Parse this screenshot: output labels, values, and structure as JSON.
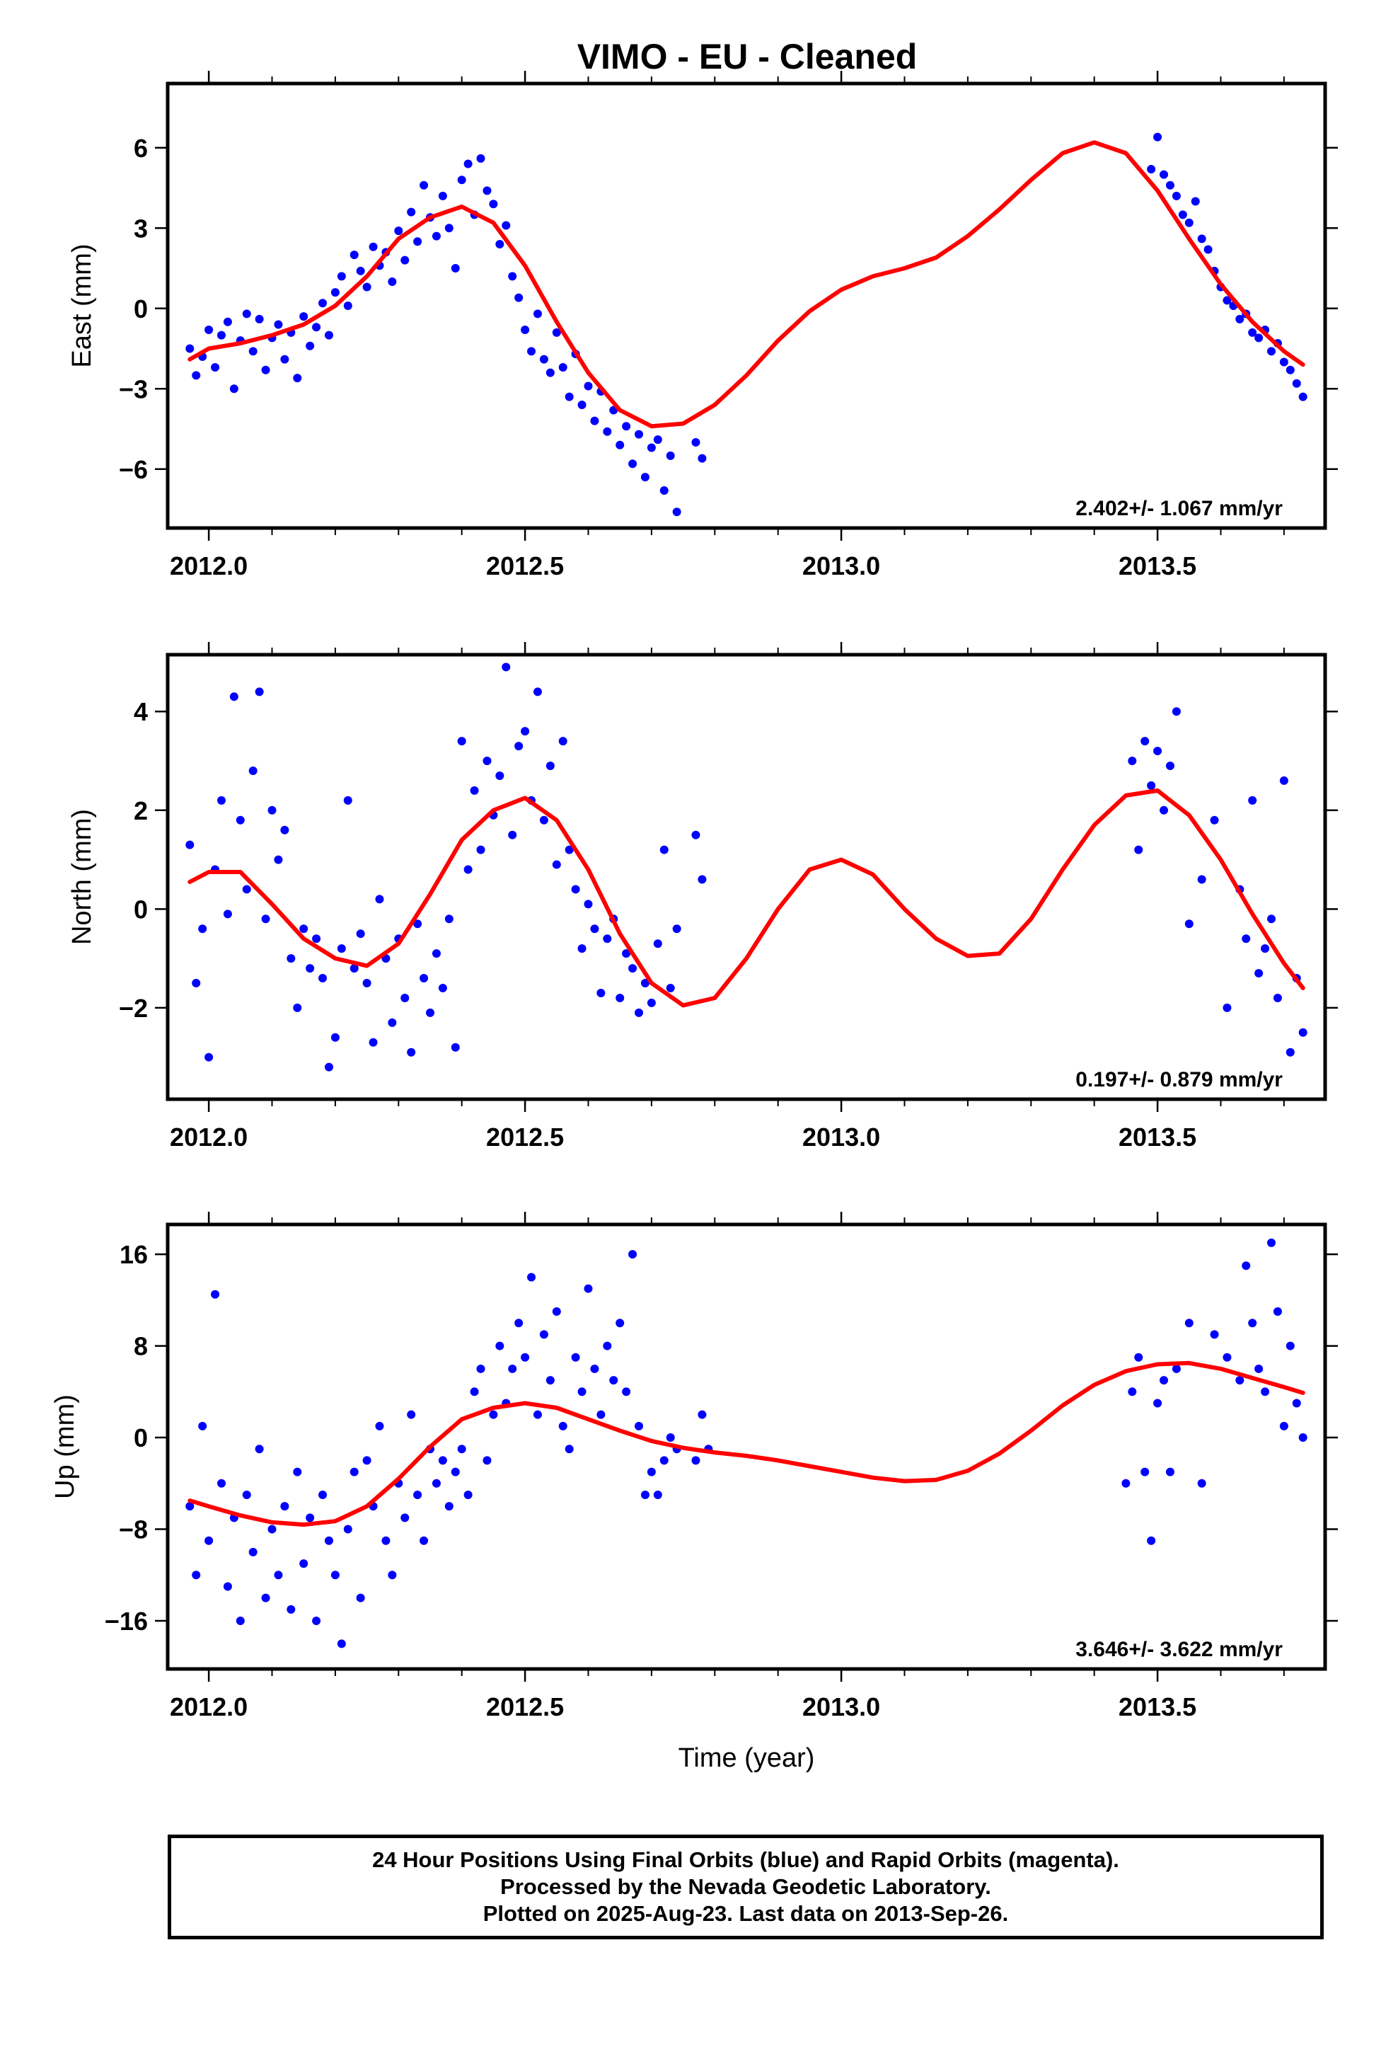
{
  "title": "VIMO  - EU - Cleaned",
  "xlabel": "Time (year)",
  "x_tick_labels": [
    "2012.0",
    "2012.5",
    "2013.0",
    "2013.5"
  ],
  "colors": {
    "data_points": "#0000ff",
    "model_curve": "#ff0000",
    "frame": "#000000"
  },
  "footer": {
    "line1": "24 Hour Positions Using Final Orbits (blue) and Rapid Orbits (magenta).",
    "line2": "Processed by the Nevada Geodetic Laboratory.",
    "line3": "Plotted on 2025-Aug-23. Last data on 2013-Sep-26."
  },
  "chart_data": [
    {
      "type": "scatter",
      "title": "VIMO  - EU - Cleaned",
      "xlabel": "",
      "ylabel": "East (mm)",
      "xlim": [
        2011.935,
        2013.765
      ],
      "ylim": [
        -8.2,
        8.4
      ],
      "xticks": [
        2012.0,
        2012.5,
        2013.0,
        2013.5
      ],
      "yticks": [
        -6,
        -3,
        0,
        3,
        6
      ],
      "ytick_labels": [
        "−6",
        "−3",
        "0",
        "3",
        "6"
      ],
      "rate": "2.402+/- 1.067 mm/yr",
      "grid": false,
      "series": [
        {
          "kind": "points",
          "x": [
            2011.97,
            2011.98,
            2011.99,
            2012.0,
            2012.01,
            2012.02,
            2012.03,
            2012.04,
            2012.05,
            2012.06,
            2012.07,
            2012.08,
            2012.09,
            2012.1,
            2012.11,
            2012.12,
            2012.13,
            2012.14,
            2012.15,
            2012.16,
            2012.17,
            2012.18,
            2012.19,
            2012.2,
            2012.21,
            2012.22,
            2012.23,
            2012.24,
            2012.25,
            2012.26,
            2012.27,
            2012.28,
            2012.29,
            2012.3,
            2012.31,
            2012.32,
            2012.33,
            2012.34,
            2012.35,
            2012.36,
            2012.37,
            2012.38,
            2012.39,
            2012.4,
            2012.41,
            2012.42,
            2012.43,
            2012.44,
            2012.45,
            2012.46,
            2012.47,
            2012.48,
            2012.49,
            2012.5,
            2012.51,
            2012.52,
            2012.53,
            2012.54,
            2012.55,
            2012.56,
            2012.57,
            2012.58,
            2012.59,
            2012.6,
            2012.61,
            2012.62,
            2012.63,
            2012.64,
            2012.65,
            2012.66,
            2012.67,
            2012.68,
            2012.69,
            2012.7,
            2012.71,
            2012.72,
            2012.73,
            2012.74,
            2012.77,
            2012.78,
            2013.49,
            2013.5,
            2013.51,
            2013.52,
            2013.53,
            2013.54,
            2013.55,
            2013.56,
            2013.57,
            2013.58,
            2013.59,
            2013.6,
            2013.61,
            2013.62,
            2013.63,
            2013.64,
            2013.65,
            2013.66,
            2013.67,
            2013.68,
            2013.69,
            2013.7,
            2013.71,
            2013.72,
            2013.73
          ],
          "y": [
            -1.5,
            -2.5,
            -1.8,
            -0.8,
            -2.2,
            -1.0,
            -0.5,
            -3.0,
            -1.2,
            -0.2,
            -1.6,
            -0.4,
            -2.3,
            -1.1,
            -0.6,
            -1.9,
            -0.9,
            -2.6,
            -0.3,
            -1.4,
            -0.7,
            0.2,
            -1.0,
            0.6,
            1.2,
            0.1,
            2.0,
            1.4,
            0.8,
            2.3,
            1.6,
            2.1,
            1.0,
            2.9,
            1.8,
            3.6,
            2.5,
            4.6,
            3.4,
            2.7,
            4.2,
            3.0,
            1.5,
            4.8,
            5.4,
            3.5,
            5.6,
            4.4,
            3.9,
            2.4,
            3.1,
            1.2,
            0.4,
            -0.8,
            -1.6,
            -0.2,
            -1.9,
            -2.4,
            -0.9,
            -2.2,
            -3.3,
            -1.7,
            -3.6,
            -2.9,
            -4.2,
            -3.1,
            -4.6,
            -3.8,
            -5.1,
            -4.4,
            -5.8,
            -4.7,
            -6.3,
            -5.2,
            -4.9,
            -6.8,
            -5.5,
            -7.6,
            -5.0,
            -5.6,
            5.2,
            6.4,
            5.0,
            4.6,
            4.2,
            3.5,
            3.2,
            4.0,
            2.6,
            2.2,
            1.4,
            0.8,
            0.3,
            0.1,
            -0.4,
            -0.2,
            -0.9,
            -1.1,
            -0.8,
            -1.6,
            -1.3,
            -2.0,
            -2.3,
            -2.8,
            -3.3
          ]
        },
        {
          "kind": "model",
          "x": [
            2011.97,
            2012.0,
            2012.05,
            2012.1,
            2012.15,
            2012.2,
            2012.25,
            2012.3,
            2012.35,
            2012.4,
            2012.45,
            2012.5,
            2012.55,
            2012.6,
            2012.65,
            2012.7,
            2012.75,
            2012.8,
            2012.85,
            2012.9,
            2012.95,
            2013.0,
            2013.05,
            2013.1,
            2013.15,
            2013.2,
            2013.25,
            2013.3,
            2013.35,
            2013.4,
            2013.45,
            2013.5,
            2013.55,
            2013.6,
            2013.65,
            2013.7,
            2013.73
          ],
          "y": [
            -1.9,
            -1.5,
            -1.3,
            -1.0,
            -0.6,
            0.1,
            1.2,
            2.6,
            3.4,
            3.8,
            3.2,
            1.6,
            -0.5,
            -2.4,
            -3.8,
            -4.4,
            -4.3,
            -3.6,
            -2.5,
            -1.2,
            -0.1,
            0.7,
            1.2,
            1.5,
            1.9,
            2.7,
            3.7,
            4.8,
            5.8,
            6.2,
            5.8,
            4.4,
            2.6,
            0.9,
            -0.5,
            -1.6,
            -2.1
          ]
        }
      ]
    },
    {
      "type": "scatter",
      "xlabel": "",
      "ylabel": "North (mm)",
      "xlim": [
        2011.935,
        2013.765
      ],
      "ylim": [
        -3.85,
        5.15
      ],
      "xticks": [
        2012.0,
        2012.5,
        2013.0,
        2013.5
      ],
      "yticks": [
        -2,
        0,
        2,
        4
      ],
      "ytick_labels": [
        "−2",
        "0",
        "2",
        "4"
      ],
      "rate": "0.197+/- 0.879 mm/yr",
      "grid": false,
      "series": [
        {
          "kind": "points",
          "x": [
            2011.97,
            2011.98,
            2011.99,
            2012.0,
            2012.01,
            2012.02,
            2012.03,
            2012.04,
            2012.05,
            2012.06,
            2012.07,
            2012.08,
            2012.09,
            2012.1,
            2012.11,
            2012.12,
            2012.13,
            2012.14,
            2012.15,
            2012.16,
            2012.17,
            2012.18,
            2012.19,
            2012.2,
            2012.21,
            2012.22,
            2012.23,
            2012.24,
            2012.25,
            2012.26,
            2012.27,
            2012.28,
            2012.29,
            2012.3,
            2012.31,
            2012.32,
            2012.33,
            2012.34,
            2012.35,
            2012.36,
            2012.37,
            2012.38,
            2012.39,
            2012.4,
            2012.41,
            2012.42,
            2012.43,
            2012.44,
            2012.45,
            2012.46,
            2012.47,
            2012.48,
            2012.49,
            2012.5,
            2012.51,
            2012.52,
            2012.53,
            2012.54,
            2012.55,
            2012.56,
            2012.57,
            2012.58,
            2012.59,
            2012.6,
            2012.61,
            2012.62,
            2012.63,
            2012.64,
            2012.65,
            2012.66,
            2012.67,
            2012.68,
            2012.69,
            2012.7,
            2012.71,
            2012.72,
            2012.73,
            2012.74,
            2012.77,
            2012.78,
            2013.46,
            2013.47,
            2013.48,
            2013.49,
            2013.5,
            2013.51,
            2013.52,
            2013.53,
            2013.55,
            2013.57,
            2013.59,
            2013.61,
            2013.63,
            2013.64,
            2013.65,
            2013.66,
            2013.67,
            2013.68,
            2013.69,
            2013.7,
            2013.71,
            2013.72,
            2013.73
          ],
          "y": [
            1.3,
            -1.5,
            -0.4,
            -3.0,
            0.8,
            2.2,
            -0.1,
            4.3,
            1.8,
            0.4,
            2.8,
            4.4,
            -0.2,
            2.0,
            1.0,
            1.6,
            -1.0,
            -2.0,
            -0.4,
            -1.2,
            -0.6,
            -1.4,
            -3.2,
            -2.6,
            -0.8,
            2.2,
            -1.2,
            -0.5,
            -1.5,
            -2.7,
            0.2,
            -1.0,
            -2.3,
            -0.6,
            -1.8,
            -2.9,
            -0.3,
            -1.4,
            -2.1,
            -0.9,
            -1.6,
            -0.2,
            -2.8,
            3.4,
            0.8,
            2.4,
            1.2,
            3.0,
            1.9,
            2.7,
            4.9,
            1.5,
            3.3,
            3.6,
            2.2,
            4.4,
            1.8,
            2.9,
            0.9,
            3.4,
            1.2,
            0.4,
            -0.8,
            0.1,
            -0.4,
            -1.7,
            -0.6,
            -0.2,
            -1.8,
            -0.9,
            -1.2,
            -2.1,
            -1.5,
            -1.9,
            -0.7,
            1.2,
            -1.6,
            -0.4,
            1.5,
            0.6,
            3.0,
            1.2,
            3.4,
            2.5,
            3.2,
            2.0,
            2.9,
            4.0,
            -0.3,
            0.6,
            1.8,
            -2.0,
            0.4,
            -0.6,
            2.2,
            -1.3,
            -0.8,
            -0.2,
            -1.8,
            2.6,
            -2.9,
            -1.4,
            -2.5
          ]
        },
        {
          "kind": "model",
          "x": [
            2011.97,
            2012.0,
            2012.05,
            2012.1,
            2012.15,
            2012.2,
            2012.25,
            2012.3,
            2012.35,
            2012.4,
            2012.45,
            2012.5,
            2012.55,
            2012.6,
            2012.65,
            2012.7,
            2012.75,
            2012.8,
            2012.85,
            2012.9,
            2012.95,
            2013.0,
            2013.05,
            2013.1,
            2013.15,
            2013.2,
            2013.25,
            2013.3,
            2013.35,
            2013.4,
            2013.45,
            2013.5,
            2013.55,
            2013.6,
            2013.65,
            2013.7,
            2013.73
          ],
          "y": [
            0.55,
            0.75,
            0.75,
            0.1,
            -0.6,
            -1.0,
            -1.15,
            -0.7,
            0.3,
            1.4,
            2.0,
            2.25,
            1.8,
            0.8,
            -0.5,
            -1.5,
            -1.95,
            -1.8,
            -1.0,
            0.0,
            0.8,
            1.0,
            0.7,
            0.0,
            -0.6,
            -0.95,
            -0.9,
            -0.2,
            0.8,
            1.7,
            2.3,
            2.4,
            1.9,
            1.0,
            -0.1,
            -1.1,
            -1.6
          ]
        }
      ]
    },
    {
      "type": "scatter",
      "xlabel": "Time (year)",
      "ylabel": "Up (mm)",
      "xlim": [
        2011.935,
        2013.765
      ],
      "ylim": [
        -20.2,
        18.6
      ],
      "xticks": [
        2012.0,
        2012.5,
        2013.0,
        2013.5
      ],
      "yticks": [
        -16,
        -8,
        0,
        8,
        16
      ],
      "ytick_labels": [
        "−16",
        "−8",
        "0",
        "8",
        "16"
      ],
      "rate": "3.646+/- 3.622 mm/yr",
      "grid": false,
      "series": [
        {
          "kind": "points",
          "x": [
            2011.97,
            2011.98,
            2011.99,
            2012.0,
            2012.01,
            2012.02,
            2012.03,
            2012.04,
            2012.05,
            2012.06,
            2012.07,
            2012.08,
            2012.09,
            2012.1,
            2012.11,
            2012.12,
            2012.13,
            2012.14,
            2012.15,
            2012.16,
            2012.17,
            2012.18,
            2012.19,
            2012.2,
            2012.21,
            2012.22,
            2012.23,
            2012.24,
            2012.25,
            2012.26,
            2012.27,
            2012.28,
            2012.29,
            2012.3,
            2012.31,
            2012.32,
            2012.33,
            2012.34,
            2012.35,
            2012.36,
            2012.37,
            2012.38,
            2012.39,
            2012.4,
            2012.41,
            2012.42,
            2012.43,
            2012.44,
            2012.45,
            2012.46,
            2012.47,
            2012.48,
            2012.49,
            2012.5,
            2012.51,
            2012.52,
            2012.53,
            2012.54,
            2012.55,
            2012.56,
            2012.57,
            2012.58,
            2012.59,
            2012.6,
            2012.61,
            2012.62,
            2012.63,
            2012.64,
            2012.65,
            2012.66,
            2012.67,
            2012.68,
            2012.69,
            2012.7,
            2012.71,
            2012.72,
            2012.73,
            2012.74,
            2012.77,
            2012.78,
            2012.79,
            2013.45,
            2013.46,
            2013.47,
            2013.48,
            2013.49,
            2013.5,
            2013.51,
            2013.52,
            2013.53,
            2013.55,
            2013.57,
            2013.59,
            2013.61,
            2013.63,
            2013.64,
            2013.65,
            2013.66,
            2013.67,
            2013.68,
            2013.69,
            2013.7,
            2013.71,
            2013.72,
            2013.73
          ],
          "y": [
            -6,
            -12,
            1,
            -9,
            12.5,
            -4,
            -13,
            -7,
            -16,
            -5,
            -10,
            -1,
            -14,
            -8,
            -12,
            -6,
            -15,
            -3,
            -11,
            -7,
            -16,
            -5,
            -9,
            -12,
            -18,
            -8,
            -3,
            -14,
            -2,
            -6,
            1,
            -9,
            -12,
            -4,
            -7,
            2,
            -5,
            -9,
            -1,
            -4,
            -2,
            -6,
            -3,
            -1,
            -5,
            4,
            6,
            -2,
            2,
            8,
            3,
            6,
            10,
            7,
            14,
            2,
            9,
            5,
            11,
            1,
            -1,
            7,
            4,
            13,
            6,
            2,
            8,
            5,
            10,
            4,
            16,
            1,
            -5,
            -3,
            -5,
            -2,
            0,
            -1,
            -2,
            2,
            -1,
            -4,
            4,
            7,
            -3,
            -9,
            3,
            5,
            -3,
            6,
            10,
            -4,
            9,
            7,
            5,
            15,
            10,
            6,
            4,
            17,
            11,
            1,
            8,
            3,
            0
          ]
        },
        {
          "kind": "model",
          "x": [
            2011.97,
            2012.0,
            2012.05,
            2012.1,
            2012.15,
            2012.2,
            2012.25,
            2012.3,
            2012.35,
            2012.4,
            2012.45,
            2012.5,
            2012.55,
            2012.6,
            2012.65,
            2012.7,
            2012.75,
            2012.8,
            2012.85,
            2012.9,
            2012.95,
            2013.0,
            2013.05,
            2013.1,
            2013.15,
            2013.2,
            2013.25,
            2013.3,
            2013.35,
            2013.4,
            2013.45,
            2013.5,
            2013.55,
            2013.6,
            2013.65,
            2013.7,
            2013.73
          ],
          "y": [
            -5.5,
            -6.0,
            -6.8,
            -7.4,
            -7.6,
            -7.3,
            -6.0,
            -3.6,
            -0.8,
            1.6,
            2.6,
            3.0,
            2.6,
            1.6,
            0.6,
            -0.3,
            -0.9,
            -1.3,
            -1.6,
            -2.0,
            -2.5,
            -3.0,
            -3.5,
            -3.8,
            -3.7,
            -2.9,
            -1.4,
            0.6,
            2.8,
            4.6,
            5.8,
            6.4,
            6.5,
            6.0,
            5.2,
            4.4,
            3.9
          ]
        }
      ]
    }
  ]
}
